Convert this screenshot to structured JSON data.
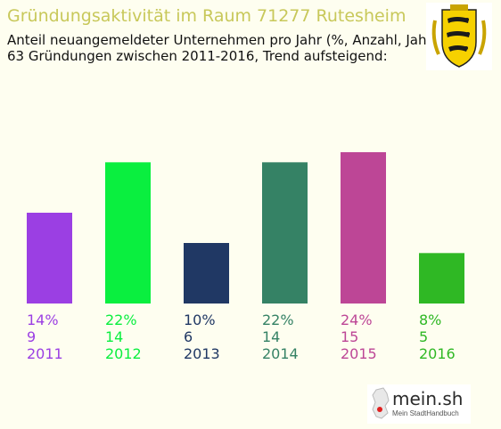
{
  "chart_data": {
    "type": "bar",
    "title": "Gründungsaktivität im Raum 71277 Rutesheim",
    "subtitle_lines": [
      "Anteil neuangemeldeter Unternehmen pro Jahr (%, Anzahl, Jahr)",
      "63 Gründungen zwischen 2011-2016, Trend aufsteigend:"
    ],
    "categories": [
      "2011",
      "2012",
      "2013",
      "2014",
      "2015",
      "2016"
    ],
    "percent_labels": [
      "14%",
      "22%",
      "10%",
      "22%",
      "24%",
      "8%"
    ],
    "values": [
      9,
      14,
      6,
      14,
      15,
      5
    ],
    "colors": [
      "#9b3fe3",
      "#0aef3f",
      "#203864",
      "#358265",
      "#bd4696",
      "#2fb824"
    ],
    "ylim": [
      0,
      15
    ],
    "grid": false,
    "legend": "none"
  },
  "branding": {
    "logo_text": "mein.sh",
    "logo_subtext": "Mein StadtHandbuch"
  }
}
